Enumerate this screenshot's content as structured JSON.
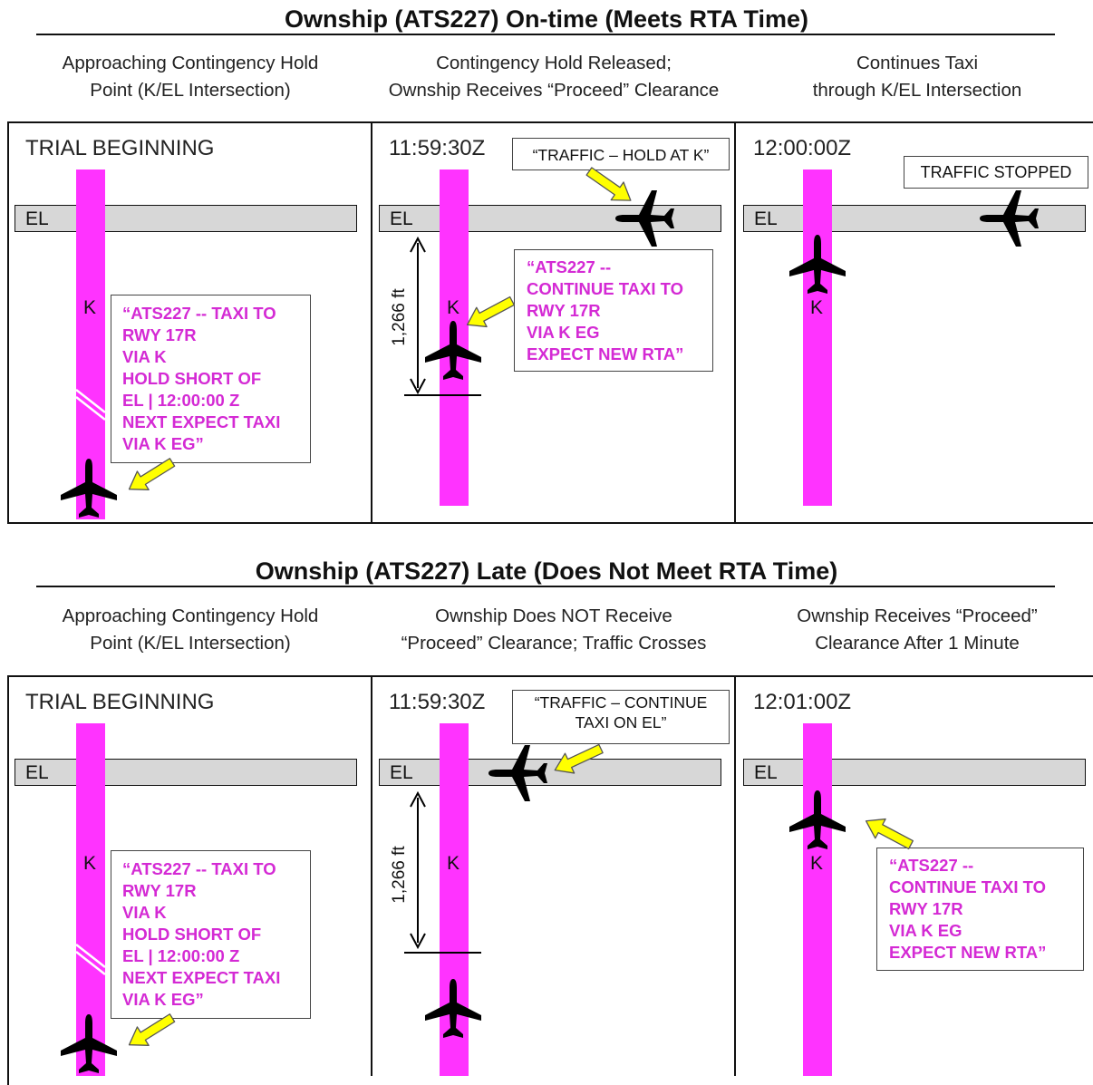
{
  "sections": [
    {
      "title": "Ownship (ATS227) On-time (Meets RTA Time)",
      "subtitles": [
        [
          "Approaching Contingency Hold",
          "Point (K/EL Intersection)"
        ],
        [
          "Contingency Hold Released;",
          "Ownship Receives “Proceed” Clearance"
        ],
        [
          "Continues Taxi",
          "through K/EL Intersection"
        ]
      ],
      "panels": [
        {
          "label": "TRIAL BEGINNING",
          "road": "EL",
          "taxiway": "K",
          "clearance": [
            "“ATS227 -- TAXI TO",
            "RWY 17R",
            "VIA K",
            "HOLD SHORT OF",
            "EL | 12:00:00 Z",
            "NEXT EXPECT TAXI",
            "VIA K EG”"
          ]
        },
        {
          "label": "11:59:30Z",
          "road": "EL",
          "taxiway": "K",
          "traffic_msg": "“TRAFFIC – HOLD AT K”",
          "distance": "1,266 ft",
          "clearance": [
            "“ATS227 --",
            "CONTINUE TAXI TO",
            "RWY 17R",
            "VIA  K EG",
            "EXPECT NEW RTA”"
          ]
        },
        {
          "label": "12:00:00Z",
          "road": "EL",
          "taxiway": "K",
          "traffic_msg": "TRAFFIC STOPPED"
        }
      ]
    },
    {
      "title": "Ownship (ATS227) Late (Does Not Meet RTA Time)",
      "subtitles": [
        [
          "Approaching Contingency Hold",
          "Point (K/EL Intersection)"
        ],
        [
          "Ownship Does NOT Receive",
          "“Proceed” Clearance; Traffic Crosses"
        ],
        [
          "Ownship Receives “Proceed”",
          "Clearance After 1 Minute"
        ]
      ],
      "panels": [
        {
          "label": "TRIAL BEGINNING",
          "road": "EL",
          "taxiway": "K",
          "clearance": [
            "“ATS227 -- TAXI TO",
            "RWY 17R",
            "VIA K",
            "HOLD SHORT OF",
            "EL | 12:00:00 Z",
            "NEXT EXPECT TAXI",
            "VIA K EG”"
          ]
        },
        {
          "label": "11:59:30Z",
          "road": "EL",
          "taxiway": "K",
          "traffic_msg": [
            "“TRAFFIC – CONTINUE",
            "TAXI ON EL”"
          ],
          "distance": "1,266 ft"
        },
        {
          "label": "12:01:00Z",
          "road": "EL",
          "taxiway": "K",
          "clearance": [
            "“ATS227 --",
            "CONTINUE TAXI TO",
            "RWY 17R",
            "VIA K EG",
            "EXPECT NEW RTA”"
          ]
        }
      ]
    }
  ],
  "colors": {
    "taxiway": "#ff33ff",
    "clearance_text": "#d42ad4",
    "road": "#d7d7d7",
    "arrow": "#ffff00",
    "aircraft": "#000000"
  },
  "icons": [
    "aircraft-icon",
    "arrow-icon"
  ]
}
